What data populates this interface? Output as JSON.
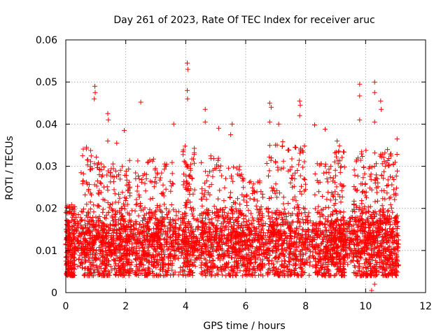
{
  "chart_data": {
    "type": "scatter",
    "title": "Day 261 of 2023, Rate Of TEC Index for receiver aruc",
    "xlabel": "GPS time / hours",
    "ylabel": "ROTI / TECUs",
    "xlim": [
      0,
      12
    ],
    "ylim": [
      0,
      0.06
    ],
    "xticks": [
      "0",
      "2",
      "4",
      "6",
      "8",
      "10",
      "12"
    ],
    "yticks": [
      "0",
      "0.01",
      "0.02",
      "0.03",
      "0.04",
      "0.05",
      "0.06"
    ],
    "grid": true,
    "marker": "plus",
    "color": "#ff0000",
    "x_coverage": [
      0,
      11.1
    ],
    "typical_range": [
      0.004,
      0.02
    ],
    "outliers": [
      {
        "x": 0.97,
        "y": 0.049
      },
      {
        "x": 0.98,
        "y": 0.0475
      },
      {
        "x": 0.95,
        "y": 0.046
      },
      {
        "x": 1.4,
        "y": 0.0425
      },
      {
        "x": 1.42,
        "y": 0.041
      },
      {
        "x": 1.4,
        "y": 0.036
      },
      {
        "x": 1.7,
        "y": 0.0355
      },
      {
        "x": 1.95,
        "y": 0.0385
      },
      {
        "x": 2.5,
        "y": 0.0452
      },
      {
        "x": 3.6,
        "y": 0.04
      },
      {
        "x": 4.05,
        "y": 0.0545
      },
      {
        "x": 4.07,
        "y": 0.053
      },
      {
        "x": 4.05,
        "y": 0.048
      },
      {
        "x": 4.06,
        "y": 0.046
      },
      {
        "x": 4.65,
        "y": 0.0435
      },
      {
        "x": 4.65,
        "y": 0.0405
      },
      {
        "x": 5.55,
        "y": 0.04
      },
      {
        "x": 5.5,
        "y": 0.0375
      },
      {
        "x": 5.1,
        "y": 0.039
      },
      {
        "x": 6.8,
        "y": 0.045
      },
      {
        "x": 6.85,
        "y": 0.044
      },
      {
        "x": 6.8,
        "y": 0.0405
      },
      {
        "x": 7.1,
        "y": 0.04
      },
      {
        "x": 7.8,
        "y": 0.0455
      },
      {
        "x": 7.82,
        "y": 0.0445
      },
      {
        "x": 7.8,
        "y": 0.042
      },
      {
        "x": 8.3,
        "y": 0.0398
      },
      {
        "x": 8.65,
        "y": 0.0388
      },
      {
        "x": 9.05,
        "y": 0.036
      },
      {
        "x": 9.8,
        "y": 0.0495
      },
      {
        "x": 9.8,
        "y": 0.0467
      },
      {
        "x": 9.8,
        "y": 0.041
      },
      {
        "x": 10.3,
        "y": 0.05
      },
      {
        "x": 10.3,
        "y": 0.0475
      },
      {
        "x": 10.5,
        "y": 0.0455
      },
      {
        "x": 10.52,
        "y": 0.0435
      },
      {
        "x": 10.3,
        "y": 0.0405
      },
      {
        "x": 11.05,
        "y": 0.0365
      },
      {
        "x": 10.2,
        "y": 0.0005
      },
      {
        "x": 10.3,
        "y": 0.002
      }
    ],
    "density_bursts": [
      {
        "x_from": 0.0,
        "x_to": 0.3,
        "y_max": 0.021
      },
      {
        "x_from": 0.5,
        "x_to": 1.1,
        "y_max": 0.035
      },
      {
        "x_from": 1.1,
        "x_to": 1.7,
        "y_max": 0.031
      },
      {
        "x_from": 1.75,
        "x_to": 2.15,
        "y_max": 0.032
      },
      {
        "x_from": 2.3,
        "x_to": 2.9,
        "y_max": 0.032
      },
      {
        "x_from": 2.9,
        "x_to": 3.6,
        "y_max": 0.033
      },
      {
        "x_from": 3.9,
        "x_to": 4.3,
        "y_max": 0.035
      },
      {
        "x_from": 4.5,
        "x_to": 5.2,
        "y_max": 0.033
      },
      {
        "x_from": 5.2,
        "x_to": 5.9,
        "y_max": 0.03
      },
      {
        "x_from": 5.9,
        "x_to": 6.6,
        "y_max": 0.027
      },
      {
        "x_from": 6.7,
        "x_to": 7.3,
        "y_max": 0.036
      },
      {
        "x_from": 7.4,
        "x_to": 8.0,
        "y_max": 0.035
      },
      {
        "x_from": 8.3,
        "x_to": 8.9,
        "y_max": 0.031
      },
      {
        "x_from": 8.9,
        "x_to": 9.3,
        "y_max": 0.035
      },
      {
        "x_from": 9.6,
        "x_to": 10.1,
        "y_max": 0.034
      },
      {
        "x_from": 10.1,
        "x_to": 10.6,
        "y_max": 0.034
      },
      {
        "x_from": 10.6,
        "x_to": 11.1,
        "y_max": 0.034
      }
    ]
  }
}
